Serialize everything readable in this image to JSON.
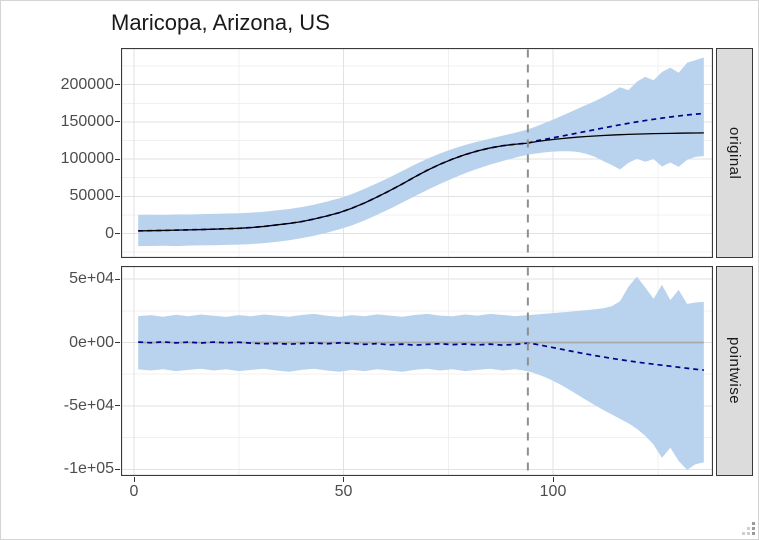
{
  "window": {
    "background": "#ffffff",
    "frame_border_color": "#d4d4d4"
  },
  "chart_data": {
    "type": "line",
    "title": "Maricopa, Arizona, US",
    "legend": "none",
    "grid": "on",
    "intervention_x": 94,
    "x_axis": {
      "label": "",
      "range": [
        -3,
        138
      ],
      "ticks": [
        {
          "v": 0,
          "label": "0"
        },
        {
          "v": 50,
          "label": "50"
        },
        {
          "v": 100,
          "label": "100"
        }
      ],
      "minor": [
        25,
        75,
        125
      ]
    },
    "x": [
      1,
      4,
      7,
      10,
      13,
      16,
      19,
      22,
      25,
      28,
      31,
      34,
      37,
      40,
      43,
      46,
      49,
      52,
      55,
      58,
      61,
      64,
      67,
      70,
      73,
      76,
      79,
      82,
      85,
      88,
      91,
      94,
      96,
      98,
      100,
      102,
      104,
      106,
      108,
      110,
      112,
      114,
      116,
      118,
      120,
      122,
      124,
      126,
      128,
      130,
      132,
      134,
      136
    ],
    "panels": [
      {
        "facet_label": "original",
        "y_axis": {
          "range": [
            -30000,
            251000
          ],
          "ticks": [
            {
              "v": 200000,
              "label": "200000"
            },
            {
              "v": 150000,
              "label": "150000"
            },
            {
              "v": 100000,
              "label": "100000"
            },
            {
              "v": 50000,
              "label": "50000"
            },
            {
              "v": 0,
              "label": "0"
            }
          ],
          "minor": [
            -25000,
            25000,
            75000,
            125000,
            175000,
            225000
          ]
        },
        "series": [
          {
            "name": "credible-interval-ribbon",
            "kind": "ribbon",
            "fill": "#B9D3EE",
            "upper": [
              25000,
              25400,
              25100,
              25700,
              25500,
              26100,
              26400,
              26900,
              27200,
              28000,
              29200,
              31000,
              33000,
              35500,
              38800,
              42800,
              47300,
              53000,
              60000,
              67500,
              75500,
              84000,
              92500,
              100500,
              107500,
              113500,
              119000,
              123500,
              127500,
              131500,
              135500,
              140000,
              144000,
              148500,
              153000,
              158000,
              163000,
              168000,
              173000,
              178000,
              183500,
              189500,
              196500,
              192500,
              204000,
              210500,
              206000,
              217000,
              223000,
              216000,
              229500,
              233000,
              236500
            ],
            "lower": [
              -17000,
              -16800,
              -16500,
              -16900,
              -16300,
              -16000,
              -15800,
              -15300,
              -15000,
              -14200,
              -13000,
              -11300,
              -9000,
              -6300,
              -3000,
              1000,
              5500,
              11000,
              17500,
              25000,
              33000,
              41500,
              50000,
              58500,
              66500,
              74000,
              81000,
              87000,
              92500,
              97500,
              102000,
              106000,
              107500,
              109000,
              110000,
              110500,
              110500,
              109500,
              107000,
              103000,
              97500,
              92000,
              86000,
              95000,
              100500,
              96500,
              100000,
              90000,
              95500,
              89500,
              99000,
              103000,
              104000
            ]
          },
          {
            "name": "predicted-line",
            "kind": "line",
            "color": "#00008B",
            "dash": "5,4",
            "width": 1.7,
            "y": [
              3500,
              3800,
              4100,
              4500,
              4900,
              5300,
              5800,
              6400,
              7000,
              8000,
              9500,
              11500,
              13500,
              16000,
              19500,
              23500,
              28000,
              34000,
              41000,
              49000,
              57500,
              66500,
              76000,
              85000,
              93000,
              100000,
              106000,
              111000,
              115000,
              118000,
              120000,
              121500,
              124500,
              126500,
              128600,
              130800,
              133000,
              135200,
              137400,
              139600,
              141800,
              144000,
              146100,
              148100,
              150000,
              151800,
              153500,
              155100,
              156600,
              158000,
              159300,
              160400,
              161400
            ]
          },
          {
            "name": "observed-line",
            "kind": "line",
            "color": "#000000",
            "dash": "",
            "width": 1.3,
            "y": [
              3500,
              3800,
              4100,
              4500,
              4900,
              5300,
              5800,
              6400,
              7000,
              8000,
              9500,
              11500,
              13500,
              16000,
              19500,
              23500,
              28000,
              34000,
              41000,
              49000,
              57500,
              66500,
              76000,
              85000,
              93000,
              100000,
              106000,
              111000,
              115000,
              118000,
              120000,
              121500,
              123500,
              125000,
              126300,
              127500,
              128600,
              129600,
              130400,
              131100,
              131700,
              132300,
              132800,
              133200,
              133600,
              133900,
              134200,
              134400,
              134600,
              134800,
              135000,
              135100,
              135200
            ]
          }
        ]
      },
      {
        "facet_label": "pointwise",
        "y_axis": {
          "range": [
            -106000,
            60000
          ],
          "ticks": [
            {
              "v": 50000,
              "label": "5e+04"
            },
            {
              "v": 0,
              "label": "0e+00"
            },
            {
              "v": -50000,
              "label": "-5e+04"
            },
            {
              "v": -100000,
              "label": "-1e+05"
            }
          ],
          "minor": [
            25000,
            -25000,
            -75000
          ]
        },
        "series": [
          {
            "name": "credible-interval-ribbon",
            "kind": "ribbon",
            "fill": "#B9D3EE",
            "upper": [
              20800,
              21600,
              20300,
              21900,
              20700,
              22100,
              21100,
              20200,
              21600,
              20700,
              22100,
              21200,
              20300,
              21700,
              22600,
              21100,
              20200,
              21600,
              20700,
              22200,
              21200,
              20300,
              21700,
              22600,
              21200,
              20700,
              22100,
              21200,
              22600,
              21700,
              20800,
              21600,
              22100,
              22700,
              23200,
              23800,
              24300,
              24900,
              25500,
              26200,
              27000,
              28600,
              32500,
              44000,
              52000,
              43500,
              34500,
              45500,
              33500,
              41500,
              30500,
              31500,
              32000
            ],
            "lower": [
              -21200,
              -22100,
              -21100,
              -22600,
              -21600,
              -20700,
              -22100,
              -21100,
              -22600,
              -21600,
              -20700,
              -22100,
              -23100,
              -21600,
              -20700,
              -22100,
              -23100,
              -21600,
              -22600,
              -21100,
              -22100,
              -23100,
              -21600,
              -20700,
              -22100,
              -21100,
              -22600,
              -21600,
              -20700,
              -22100,
              -21100,
              -22600,
              -24600,
              -27200,
              -30200,
              -33600,
              -37500,
              -41500,
              -45500,
              -49500,
              -53200,
              -56700,
              -60200,
              -63700,
              -68000,
              -73500,
              -80500,
              -91000,
              -83000,
              -93500,
              -100500,
              -96000,
              -94500
            ]
          },
          {
            "name": "zero-line",
            "kind": "hline",
            "color": "#A9A9A9",
            "width": 1.8,
            "y": 0
          },
          {
            "name": "pointwise-effect-line",
            "kind": "line",
            "color": "#00008B",
            "dash": "5,4",
            "width": 1.7,
            "y": [
              400,
              -200,
              500,
              -300,
              300,
              -400,
              350,
              -250,
              200,
              -500,
              -1000,
              -700,
              -1300,
              -800,
              -400,
              -1000,
              -300,
              -700,
              -1500,
              -900,
              -1900,
              -1300,
              -2100,
              -1500,
              -1000,
              -1700,
              -1200,
              -1900,
              -1300,
              -2100,
              -1500,
              -500,
              -1400,
              -2700,
              -4000,
              -5300,
              -6600,
              -7900,
              -9100,
              -10300,
              -11400,
              -12500,
              -13500,
              -14500,
              -15400,
              -16300,
              -17100,
              -17900,
              -18700,
              -19500,
              -20300,
              -21100,
              -21800
            ]
          }
        ]
      }
    ],
    "styles": {
      "ribbon_fill": "#B9D3EE",
      "observed_color": "#000000",
      "predicted_color": "#00008B",
      "vline_color": "#8e8e8e",
      "vline_dash": "8,7",
      "zero_line_color": "#A9A9A9",
      "grid_major": "#e2e2e2",
      "grid_minor": "#f0f0f0",
      "panel_border": "#3a3a3a",
      "strip_bg": "#dcdcdc",
      "strip_text_color": "#1a1a1a",
      "tick_label_color": "#4d4d4d",
      "title_color": "#1a1a1a"
    }
  }
}
